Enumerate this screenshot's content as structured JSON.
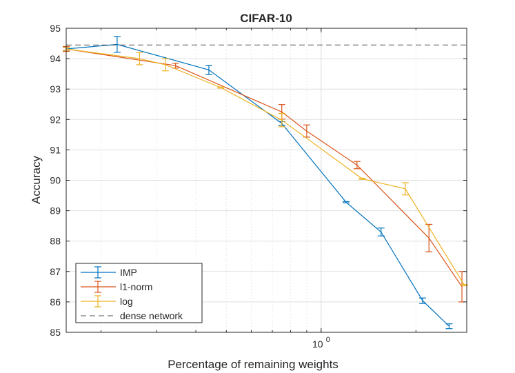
{
  "chart_data": {
    "type": "line",
    "title": "CIFAR-10",
    "xlabel": "Percentage of remaining weights",
    "ylabel": "Accuracy",
    "xscale": "log",
    "xlim": [
      0.155,
      2.9
    ],
    "ylim": [
      85,
      95
    ],
    "grid": true,
    "x_ticks": [
      {
        "value": 1,
        "base": "10",
        "exponent": "0"
      }
    ],
    "y_ticks": [
      85,
      86,
      87,
      88,
      89,
      90,
      91,
      92,
      93,
      94,
      95
    ],
    "legend_position": "bottom-left",
    "series": [
      {
        "name": "IMP",
        "color": "#0072BD",
        "x": [
          0.155,
          0.225,
          0.44,
          0.75,
          1.2,
          1.55,
          2.1,
          2.55
        ],
        "y": [
          94.32,
          94.47,
          93.63,
          91.87,
          89.28,
          88.3,
          86.04,
          85.2
        ],
        "err": [
          0.05,
          0.26,
          0.15,
          0.06,
          0.02,
          0.13,
          0.09,
          0.08
        ]
      },
      {
        "name": "l1-norm",
        "color": "#D95319",
        "x": [
          0.155,
          0.345,
          0.75,
          0.9,
          1.3,
          2.2,
          2.8
        ],
        "y": [
          94.32,
          93.77,
          92.25,
          91.62,
          90.5,
          88.1,
          86.5
        ],
        "err": [
          0.08,
          0.08,
          0.24,
          0.2,
          0.12,
          0.45,
          0.5
        ]
      },
      {
        "name": "log",
        "color": "#EDB120",
        "x": [
          0.155,
          0.265,
          0.32,
          0.48,
          0.75,
          1.35,
          1.85,
          2.85
        ],
        "y": [
          94.32,
          94.0,
          93.8,
          93.05,
          91.98,
          90.05,
          89.72,
          86.55
        ],
        "err": [
          0.05,
          0.2,
          0.2,
          0.02,
          0.22,
          0.02,
          0.2,
          0.02
        ]
      },
      {
        "name": "dense network",
        "color": "#545454",
        "style": "dashed",
        "constant_y": 94.45
      }
    ]
  }
}
